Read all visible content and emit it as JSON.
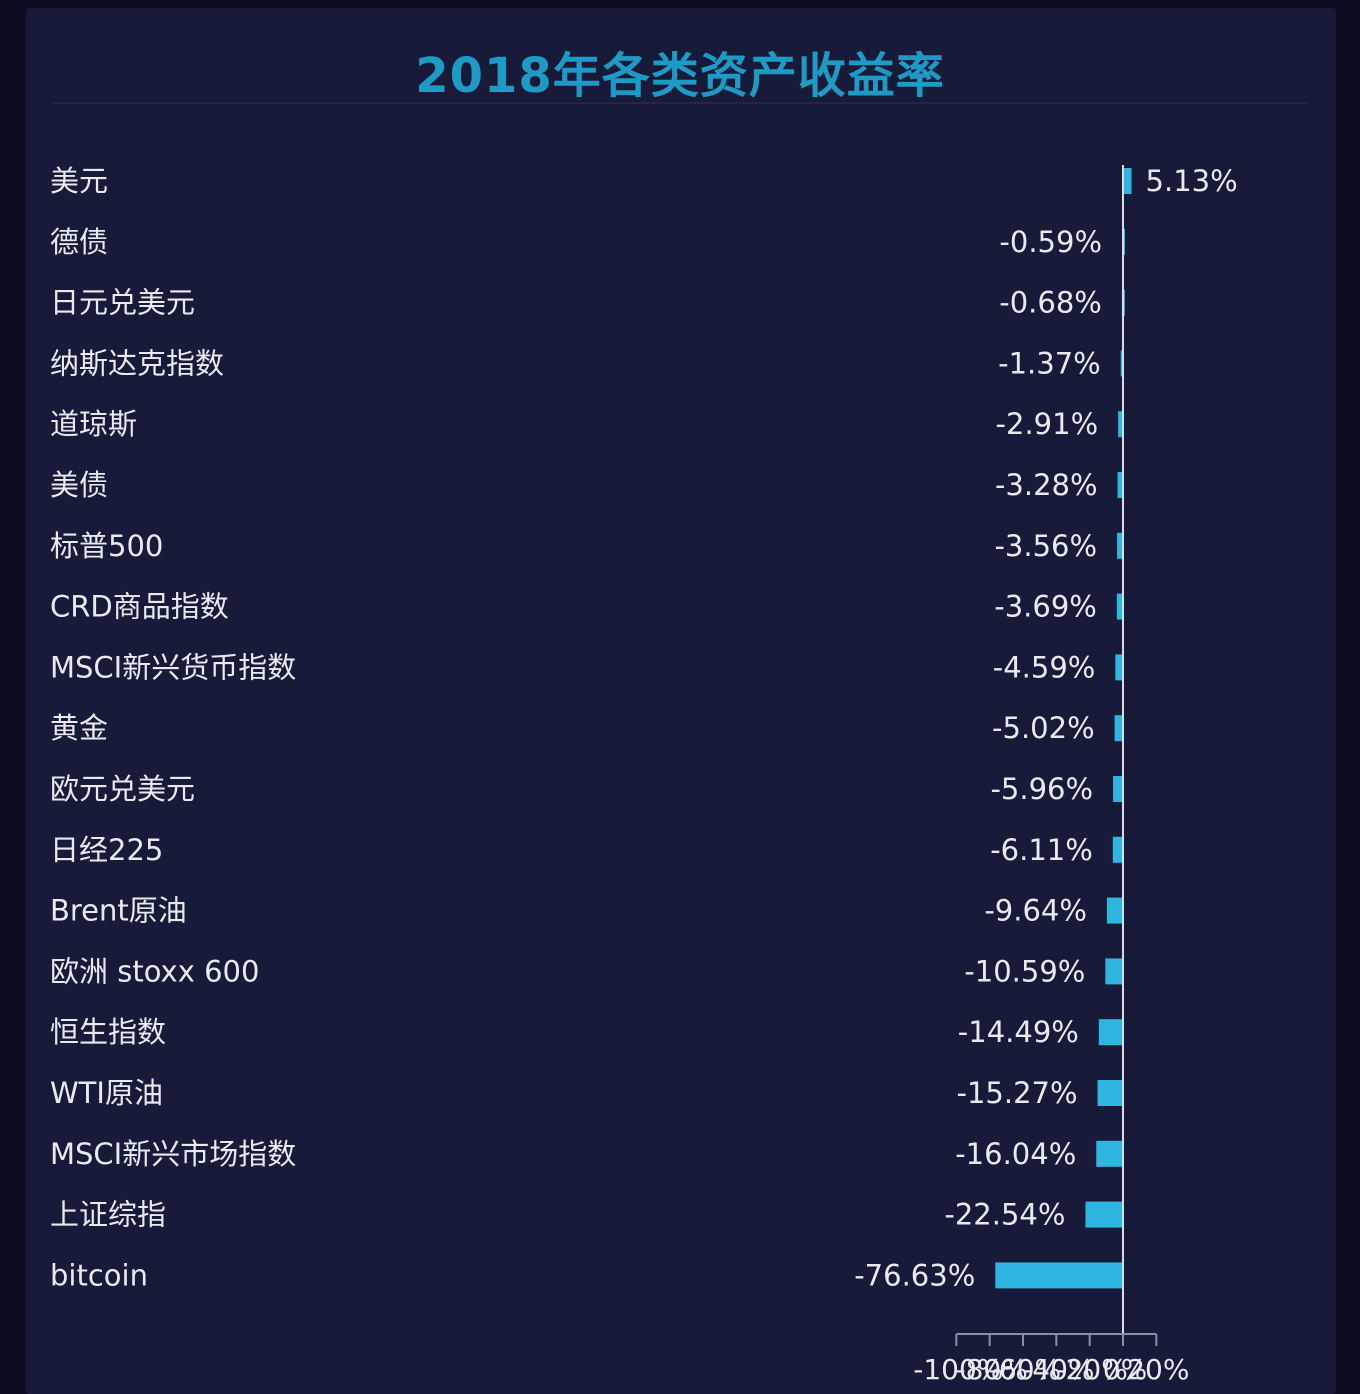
{
  "chart_data": {
    "type": "bar",
    "orientation": "horizontal",
    "title": "2018年各类资产收益率",
    "categories": [
      "美元",
      "德债",
      "日元兑美元",
      "纳斯达克指数",
      "道琼斯",
      "美债",
      "标普500",
      "CRD商品指数",
      "MSCI新兴货币指数",
      "黄金",
      "欧元兑美元",
      "日经225",
      "Brent原油",
      "欧洲 stoxx 600",
      "恒生指数",
      "WTI原油",
      "MSCI新兴市场指数",
      "上证综指",
      "bitcoin"
    ],
    "values": [
      5.13,
      -0.59,
      -0.68,
      -1.37,
      -2.91,
      -3.28,
      -3.56,
      -3.69,
      -4.59,
      -5.02,
      -5.96,
      -6.11,
      -9.64,
      -10.59,
      -14.49,
      -15.27,
      -16.04,
      -22.54,
      -76.63
    ],
    "value_labels": [
      "5.13%",
      "-0.59%",
      "-0.68%",
      "-1.37%",
      "-2.91%",
      "-3.28%",
      "-3.56%",
      "-3.69%",
      "-4.59%",
      "-5.02%",
      "-5.96%",
      "-6.11%",
      "-9.64%",
      "-10.59%",
      "-14.49%",
      "-15.27%",
      "-16.04%",
      "-22.54%",
      "-76.63%"
    ],
    "xlim": [
      -100,
      20
    ],
    "x_ticks": [
      -100,
      -80,
      -60,
      -40,
      -20,
      0,
      20
    ],
    "x_tick_labels": [
      "-100%",
      "-80%",
      "-60%",
      "-40%",
      "-20%",
      "0%",
      "20%"
    ],
    "xlabel": "",
    "ylabel": "",
    "grid": false,
    "legend": "none",
    "bar_color": "#2fb6e0",
    "axis_color": "#d9dce6",
    "title_color": "#1d9bc5",
    "background": "#181a3a"
  }
}
